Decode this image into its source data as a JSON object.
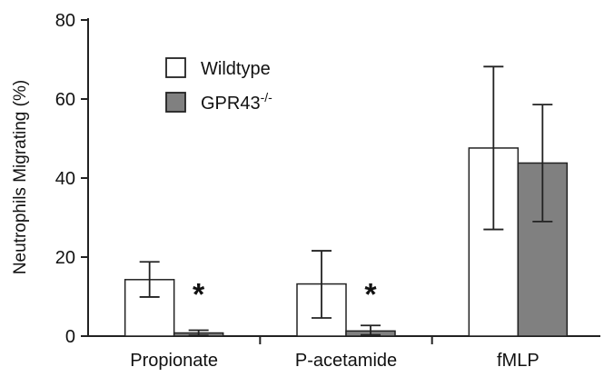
{
  "chart_data": {
    "type": "bar",
    "ylabel": "Neutrophils Migrating (%)",
    "xlabel": "",
    "ylim": [
      0,
      80
    ],
    "yticks": [
      0,
      20,
      40,
      60,
      80
    ],
    "grid": false,
    "legend_position": "top-left",
    "categories": [
      "Propionate",
      "P-acetamide",
      "fMLP"
    ],
    "series": [
      {
        "name": "Wildtype",
        "name_sup": "",
        "color": "#ffffff",
        "values": [
          14.3,
          13.2,
          47.6
        ],
        "err_low": [
          9.9,
          4.6,
          27.0
        ],
        "err_high": [
          18.8,
          21.6,
          68.2
        ]
      },
      {
        "name": "GPR43",
        "name_sup": "-/-",
        "color": "#808080",
        "values": [
          0.8,
          1.3,
          43.8
        ],
        "err_low": [
          0.2,
          0.3,
          29.0
        ],
        "err_high": [
          1.5,
          2.7,
          58.6
        ]
      }
    ],
    "annotations": [
      {
        "text": "*",
        "category_index": 0,
        "series_index": 1,
        "y": 12.5
      },
      {
        "text": "*",
        "category_index": 1,
        "series_index": 1,
        "y": 12.5
      }
    ]
  }
}
